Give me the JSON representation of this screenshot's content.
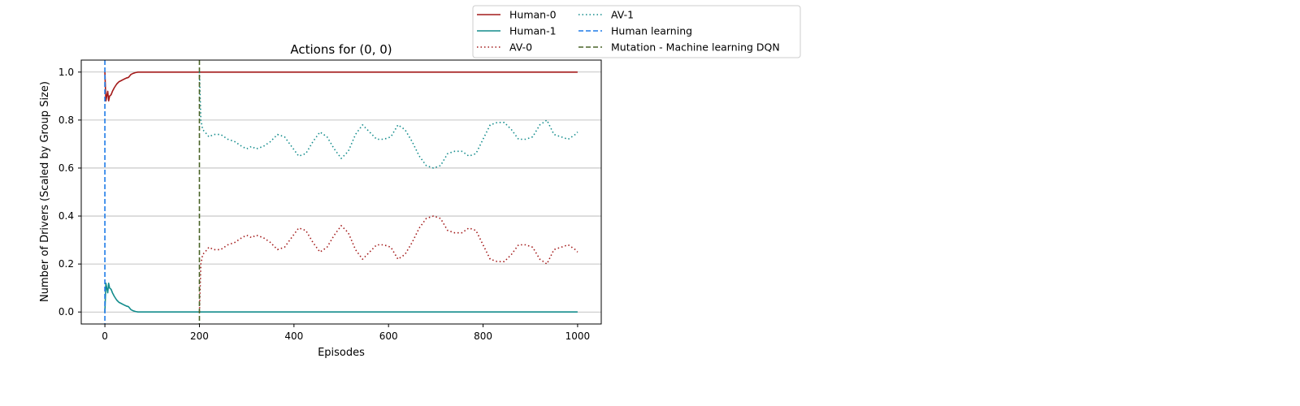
{
  "chart_data": {
    "type": "line",
    "title": "Actions for (0, 0)",
    "xlabel": "Episodes",
    "ylabel": "Number of Drivers (Scaled by Group Size)",
    "xlim": [
      -50,
      1050
    ],
    "ylim": [
      -0.05,
      1.05
    ],
    "xticks": [
      0,
      200,
      400,
      600,
      800,
      1000
    ],
    "yticks": [
      0.0,
      0.2,
      0.4,
      0.6,
      0.8,
      1.0
    ],
    "xtick_labels": [
      "0",
      "200",
      "400",
      "600",
      "800",
      "1000"
    ],
    "ytick_labels": [
      "0.0",
      "0.2",
      "0.4",
      "0.6",
      "0.8",
      "1.0"
    ],
    "grid": "horizontal",
    "legend_placement": "top-center outside",
    "series": [
      {
        "name": "Human-0",
        "color": "#a31a1a",
        "style": "solid",
        "x": [
          0,
          2,
          4,
          6,
          8,
          10,
          13,
          16,
          20,
          25,
          30,
          35,
          40,
          45,
          50,
          55,
          60,
          65,
          70,
          75,
          80,
          90,
          100,
          120,
          150,
          200,
          300,
          400,
          500,
          600,
          700,
          800,
          900,
          1000
        ],
        "y": [
          1.0,
          0.88,
          0.9,
          0.92,
          0.88,
          0.9,
          0.905,
          0.92,
          0.935,
          0.95,
          0.96,
          0.965,
          0.97,
          0.975,
          0.978,
          0.99,
          0.995,
          0.998,
          1.0,
          1.0,
          1.0,
          1.0,
          1.0,
          1.0,
          1.0,
          1.0,
          1.0,
          1.0,
          1.0,
          1.0,
          1.0,
          1.0,
          1.0,
          1.0
        ]
      },
      {
        "name": "Human-1",
        "color": "#138c8c",
        "style": "solid",
        "x": [
          0,
          2,
          4,
          6,
          8,
          10,
          13,
          16,
          20,
          25,
          30,
          35,
          40,
          45,
          50,
          55,
          60,
          65,
          70,
          75,
          80,
          90,
          100,
          120,
          150,
          200,
          300,
          400,
          500,
          600,
          700,
          800,
          900,
          1000
        ],
        "y": [
          0.0,
          0.12,
          0.1,
          0.08,
          0.12,
          0.1,
          0.095,
          0.08,
          0.065,
          0.05,
          0.04,
          0.035,
          0.03,
          0.025,
          0.022,
          0.01,
          0.005,
          0.002,
          0.0,
          0.0,
          0.0,
          0.0,
          0.0,
          0.0,
          0.0,
          0.0,
          0.0,
          0.0,
          0.0,
          0.0,
          0.0,
          0.0,
          0.0,
          0.0
        ]
      },
      {
        "name": "AV-0",
        "color": "#a31a1a",
        "style": "dotted",
        "x": [
          200,
          203,
          207,
          212,
          220,
          230,
          245,
          260,
          275,
          290,
          300,
          310,
          320,
          335,
          350,
          365,
          380,
          395,
          410,
          425,
          440,
          455,
          470,
          485,
          500,
          515,
          530,
          545,
          560,
          575,
          590,
          605,
          620,
          635,
          650,
          665,
          680,
          695,
          710,
          725,
          740,
          755,
          770,
          785,
          800,
          815,
          830,
          845,
          860,
          875,
          890,
          905,
          920,
          935,
          950,
          965,
          980,
          995,
          1000
        ],
        "y": [
          0.0,
          0.2,
          0.24,
          0.25,
          0.27,
          0.26,
          0.26,
          0.28,
          0.29,
          0.31,
          0.32,
          0.31,
          0.32,
          0.31,
          0.29,
          0.26,
          0.27,
          0.31,
          0.35,
          0.34,
          0.29,
          0.25,
          0.27,
          0.32,
          0.36,
          0.33,
          0.26,
          0.22,
          0.25,
          0.28,
          0.28,
          0.27,
          0.22,
          0.24,
          0.29,
          0.35,
          0.39,
          0.4,
          0.39,
          0.34,
          0.33,
          0.33,
          0.35,
          0.34,
          0.28,
          0.22,
          0.21,
          0.21,
          0.24,
          0.28,
          0.28,
          0.27,
          0.22,
          0.2,
          0.26,
          0.27,
          0.28,
          0.26,
          0.25
        ]
      },
      {
        "name": "AV-1",
        "color": "#138c8c",
        "style": "dotted",
        "x": [
          200,
          203,
          207,
          212,
          220,
          230,
          245,
          260,
          275,
          290,
          300,
          310,
          320,
          335,
          350,
          365,
          380,
          395,
          410,
          425,
          440,
          455,
          470,
          485,
          500,
          515,
          530,
          545,
          560,
          575,
          590,
          605,
          620,
          635,
          650,
          665,
          680,
          695,
          710,
          725,
          740,
          755,
          770,
          785,
          800,
          815,
          830,
          845,
          860,
          875,
          890,
          905,
          920,
          935,
          950,
          965,
          980,
          995,
          1000
        ],
        "y": [
          1.0,
          0.8,
          0.76,
          0.75,
          0.73,
          0.74,
          0.74,
          0.72,
          0.71,
          0.69,
          0.68,
          0.69,
          0.68,
          0.69,
          0.71,
          0.74,
          0.73,
          0.69,
          0.65,
          0.66,
          0.71,
          0.75,
          0.73,
          0.68,
          0.64,
          0.67,
          0.74,
          0.78,
          0.75,
          0.72,
          0.72,
          0.73,
          0.78,
          0.76,
          0.71,
          0.65,
          0.61,
          0.6,
          0.61,
          0.66,
          0.67,
          0.67,
          0.65,
          0.66,
          0.72,
          0.78,
          0.79,
          0.79,
          0.76,
          0.72,
          0.72,
          0.73,
          0.78,
          0.8,
          0.74,
          0.73,
          0.72,
          0.74,
          0.75
        ]
      },
      {
        "name": "Human learning",
        "color": "#1e7be8",
        "style": "dashed",
        "vline_x": 0
      },
      {
        "name": "Mutation - Machine learning DQN",
        "color": "#4a6428",
        "style": "dashed",
        "vline_x": 200
      }
    ]
  }
}
